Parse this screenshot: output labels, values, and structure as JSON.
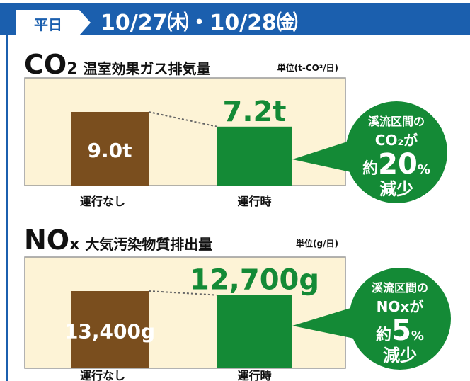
{
  "header": {
    "tab": "平日",
    "dates": "10/27㈭・10/28㈮"
  },
  "chart_data": [
    {
      "type": "bar",
      "title": "CO",
      "title_sub": "2",
      "subtitle": "温室効果ガス排気量",
      "unit_label": "単位(t-CO²/日)",
      "categories": [
        "運行なし",
        "運行時"
      ],
      "values": [
        9.0,
        7.2
      ],
      "value_labels": [
        "9.0t",
        "7.2t"
      ],
      "colors": [
        "#7a4e1e",
        "#148a36"
      ],
      "callout": {
        "line1": "溪流区間の",
        "line2": "CO₂が",
        "prefix": "約",
        "number": "20",
        "unit": "%",
        "suffix": "減少"
      }
    },
    {
      "type": "bar",
      "title": "NO",
      "title_sub": "x",
      "subtitle": "大気汚染物質排出量",
      "unit_label": "単位(g/日)",
      "categories": [
        "運行なし",
        "運行時"
      ],
      "values": [
        13400,
        12700
      ],
      "value_labels": [
        "13,400g",
        "12,700g"
      ],
      "colors": [
        "#7a4e1e",
        "#148a36"
      ],
      "callout": {
        "line1": "溪流区間の",
        "line2": "NOxが",
        "prefix": "約",
        "number": "5",
        "unit": "%",
        "suffix": "減少"
      }
    }
  ]
}
